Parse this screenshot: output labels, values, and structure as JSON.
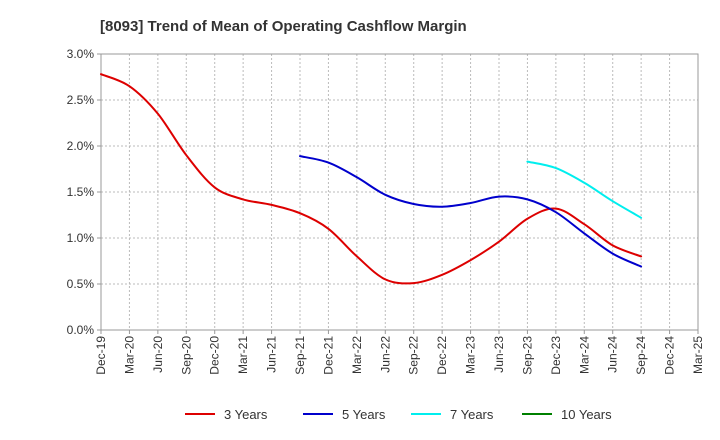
{
  "chart_data": {
    "type": "line",
    "title": "[8093]  Trend of Mean of Operating Cashflow Margin",
    "xlabel": "",
    "ylabel": "",
    "x_ticks": [
      "Dec-19",
      "Mar-20",
      "Jun-20",
      "Sep-20",
      "Dec-20",
      "Mar-21",
      "Jun-21",
      "Sep-21",
      "Dec-21",
      "Mar-22",
      "Jun-22",
      "Sep-22",
      "Dec-22",
      "Mar-23",
      "Jun-23",
      "Sep-23",
      "Dec-23",
      "Mar-24",
      "Jun-24",
      "Sep-24",
      "Dec-24",
      "Mar-25"
    ],
    "y_ticks": [
      "0.0%",
      "0.5%",
      "1.0%",
      "1.5%",
      "2.0%",
      "2.5%",
      "3.0%"
    ],
    "ylim": [
      0,
      3.0
    ],
    "y_unit": "%",
    "grid": true,
    "legend_position": "bottom",
    "series": [
      {
        "name": "3 Years",
        "color": "#dd0000",
        "points": [
          [
            "Dec-19",
            2.78
          ],
          [
            "Mar-20",
            2.65
          ],
          [
            "Jun-20",
            2.35
          ],
          [
            "Sep-20",
            1.9
          ],
          [
            "Dec-20",
            1.55
          ],
          [
            "Mar-21",
            1.42
          ],
          [
            "Jun-21",
            1.36
          ],
          [
            "Sep-21",
            1.27
          ],
          [
            "Dec-21",
            1.1
          ],
          [
            "Mar-22",
            0.8
          ],
          [
            "Jun-22",
            0.55
          ],
          [
            "Sep-22",
            0.51
          ],
          [
            "Dec-22",
            0.6
          ],
          [
            "Mar-23",
            0.76
          ],
          [
            "Jun-23",
            0.96
          ],
          [
            "Sep-23",
            1.21
          ],
          [
            "Dec-23",
            1.32
          ],
          [
            "Mar-24",
            1.15
          ],
          [
            "Jun-24",
            0.92
          ],
          [
            "Sep-24",
            0.8
          ]
        ]
      },
      {
        "name": "5 Years",
        "color": "#0000cc",
        "points": [
          [
            "Sep-21",
            1.89
          ],
          [
            "Dec-21",
            1.82
          ],
          [
            "Mar-22",
            1.66
          ],
          [
            "Jun-22",
            1.47
          ],
          [
            "Sep-22",
            1.37
          ],
          [
            "Dec-22",
            1.34
          ],
          [
            "Mar-23",
            1.38
          ],
          [
            "Jun-23",
            1.45
          ],
          [
            "Sep-23",
            1.42
          ],
          [
            "Dec-23",
            1.28
          ],
          [
            "Mar-24",
            1.05
          ],
          [
            "Jun-24",
            0.83
          ],
          [
            "Sep-24",
            0.69
          ]
        ]
      },
      {
        "name": "7 Years",
        "color": "#00eeee",
        "points": [
          [
            "Sep-23",
            1.83
          ],
          [
            "Dec-23",
            1.76
          ],
          [
            "Mar-24",
            1.6
          ],
          [
            "Jun-24",
            1.4
          ],
          [
            "Sep-24",
            1.22
          ]
        ]
      },
      {
        "name": "10 Years",
        "color": "#008000",
        "points": []
      }
    ]
  }
}
